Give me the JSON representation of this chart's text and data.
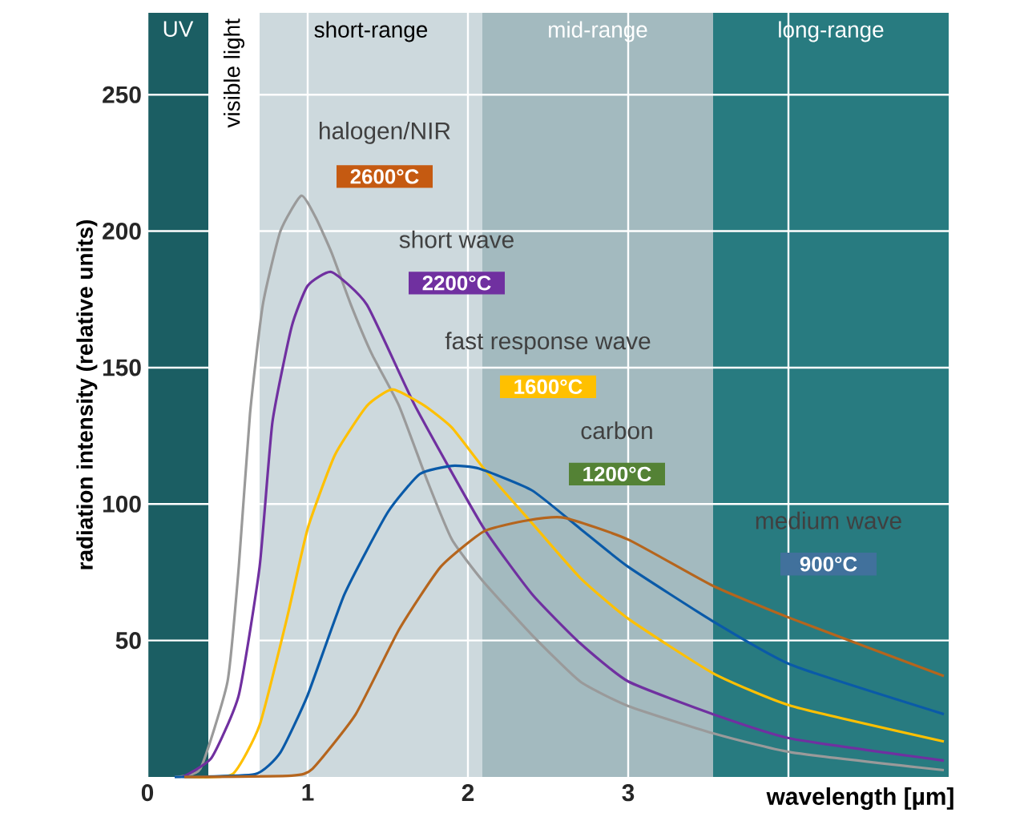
{
  "chart_data": {
    "type": "line",
    "xlabel": "wavelength [µm]",
    "ylabel": "radiation intensity  (relative units)",
    "xlim": [
      0,
      5
    ],
    "ylim": [
      0,
      280
    ],
    "xticks": [
      0,
      1,
      2,
      3,
      {
        "value": 4,
        "label": null
      }
    ],
    "yticks": [
      50,
      100,
      150,
      200,
      250
    ],
    "grid": true,
    "bands": [
      {
        "axis": "x",
        "from": 0,
        "to": 0.38,
        "label": "UV",
        "color": "#1b5e63"
      },
      {
        "axis": "x",
        "from": 0.7,
        "to": 2.09,
        "label": "short-range",
        "color": "#cdd9dd"
      },
      {
        "axis": "x",
        "from": 2.09,
        "to": 3.53,
        "label": "mid-range",
        "color": "#a3babf"
      },
      {
        "axis": "x",
        "from": 3.53,
        "to": 5,
        "label": "long-range",
        "color": "#287b80"
      }
    ],
    "series": [
      {
        "color": "#9a9a9a",
        "x": [
          0.17,
          0.33,
          0.5,
          0.57,
          0.64,
          0.72,
          0.83,
          0.96,
          1.05,
          1.15,
          1.27,
          1.4,
          1.57,
          1.75,
          1.9,
          2.09,
          2.4,
          2.7,
          3.0,
          3.53,
          4.02,
          4.97
        ],
        "values": [
          0,
          3,
          35,
          77,
          133,
          173,
          200,
          213,
          205,
          192,
          173,
          155,
          136,
          108,
          87,
          72,
          52,
          35,
          26,
          16,
          9,
          2.5
        ]
      },
      {
        "color": "#7030a0",
        "x": [
          0.22,
          0.4,
          0.57,
          0.7,
          0.78,
          0.9,
          1.0,
          1.15,
          1.37,
          1.67,
          2.09,
          2.4,
          2.7,
          3.0,
          3.53,
          4.02,
          4.97
        ],
        "values": [
          0,
          7,
          30,
          77,
          130,
          165,
          180,
          185,
          173,
          136,
          92,
          67,
          49,
          35,
          23,
          14,
          6
        ]
      },
      {
        "color": "#ffc000",
        "x": [
          0.23,
          0.53,
          0.7,
          0.87,
          1.0,
          1.17,
          1.37,
          1.53,
          1.73,
          1.9,
          2.1,
          2.4,
          2.7,
          3.0,
          3.53,
          4.02,
          4.97
        ],
        "values": [
          0,
          1,
          19,
          58,
          91,
          118,
          136,
          142,
          136,
          128,
          113,
          93,
          73,
          58,
          38,
          26,
          13
        ]
      },
      {
        "color": "#0a5aa8",
        "x": [
          0.17,
          0.67,
          0.83,
          1.0,
          1.23,
          1.5,
          1.7,
          1.9,
          2.07,
          2.4,
          2.7,
          3.0,
          3.53,
          4.02,
          4.97
        ],
        "values": [
          0,
          1,
          9,
          30,
          67,
          97,
          111,
          114,
          113,
          105,
          91,
          77,
          57,
          41,
          23
        ]
      },
      {
        "color": "#b5651d",
        "x": [
          0.23,
          0.9,
          1.03,
          1.3,
          1.57,
          1.83,
          2.1,
          2.37,
          2.6,
          3.0,
          3.53,
          4.02,
          4.97
        ],
        "values": [
          0,
          0.5,
          3,
          23,
          54,
          77,
          90,
          94,
          95,
          87,
          70,
          58,
          37
        ]
      }
    ],
    "annotations": [
      "halogen/NIR",
      "2600°C",
      "short wave",
      "2200°C",
      "fast response wave",
      "1600°C",
      "carbon",
      "1200°C",
      "medium wave",
      "900°C",
      "visible light"
    ]
  }
}
